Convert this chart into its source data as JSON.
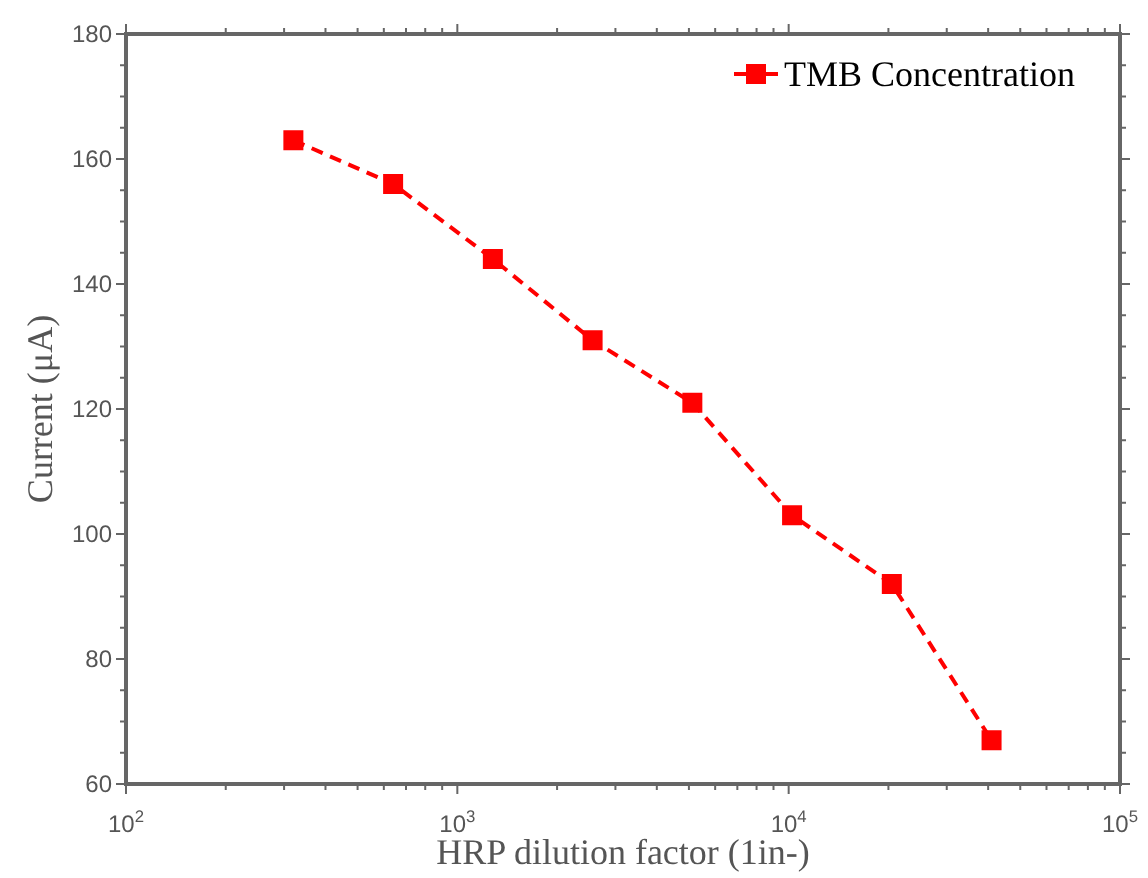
{
  "chart_data": {
    "type": "line",
    "xlabel": "HRP dilution factor (1in-)",
    "ylabel": "Current (μA)",
    "log": "x",
    "x": [
      320,
      640,
      1280,
      2560,
      5120,
      10240,
      20480,
      40960
    ],
    "series": [
      {
        "name": "TMB Concentration",
        "color": "#ff0000",
        "values": [
          163,
          156,
          144,
          131,
          121,
          103,
          92,
          67
        ]
      }
    ],
    "xlim": [
      100,
      100000
    ],
    "xticks": [
      {
        "value": 100,
        "label": "10$^{2}$"
      },
      {
        "value": 200,
        "label": null
      },
      {
        "value": 300,
        "label": null
      },
      {
        "value": 400,
        "label": null
      },
      {
        "value": 500,
        "label": null
      },
      {
        "value": 600,
        "label": null
      },
      {
        "value": 700,
        "label": null
      },
      {
        "value": 800,
        "label": null
      },
      {
        "value": 900,
        "label": null
      },
      {
        "value": 1000,
        "label": "10$^{3}$"
      },
      {
        "value": 2000,
        "label": null
      },
      {
        "value": 3000,
        "label": null
      },
      {
        "value": 4000,
        "label": null
      },
      {
        "value": 5000,
        "label": null
      },
      {
        "value": 6000,
        "label": null
      },
      {
        "value": 7000,
        "label": null
      },
      {
        "value": 8000,
        "label": null
      },
      {
        "value": 9000,
        "label": null
      },
      {
        "value": 10000,
        "label": "10$^{4}$"
      },
      {
        "value": 20000,
        "label": null
      },
      {
        "value": 30000,
        "label": null
      },
      {
        "value": 40000,
        "label": null
      },
      {
        "value": 50000,
        "label": null
      },
      {
        "value": 60000,
        "label": null
      },
      {
        "value": 70000,
        "label": null
      },
      {
        "value": 80000,
        "label": null
      },
      {
        "value": 90000,
        "label": null
      },
      {
        "value": 100000,
        "label": "10$^{5}$"
      }
    ],
    "ylim": [
      60,
      180
    ],
    "yticks": [
      60,
      {
        "value": 65,
        "label": null
      },
      {
        "value": 70,
        "label": null
      },
      {
        "value": 75,
        "label": null
      },
      80,
      {
        "value": 85,
        "label": null
      },
      {
        "value": 90,
        "label": null
      },
      {
        "value": 95,
        "label": null
      },
      100,
      {
        "value": 105,
        "label": null
      },
      {
        "value": 110,
        "label": null
      },
      {
        "value": 115,
        "label": null
      },
      120,
      {
        "value": 125,
        "label": null
      },
      {
        "value": 130,
        "label": null
      },
      {
        "value": 135,
        "label": null
      },
      140,
      {
        "value": 145,
        "label": null
      },
      {
        "value": 150,
        "label": null
      },
      {
        "value": 155,
        "label": null
      },
      160,
      {
        "value": 165,
        "label": null
      },
      {
        "value": 170,
        "label": null
      },
      {
        "value": 175,
        "label": null
      },
      180
    ],
    "grid": false,
    "legend": "top right",
    "marker": "square",
    "line_style": "dashed"
  }
}
